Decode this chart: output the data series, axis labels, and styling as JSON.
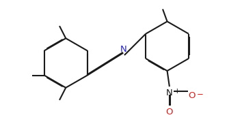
{
  "bg_color": "#ffffff",
  "bond_color": "#1a1a1a",
  "N_color": "#2222cc",
  "O_color": "#cc2222",
  "lw": 1.5,
  "dbo": 0.025,
  "fs": 9.5,
  "figsize": [
    3.54,
    1.85
  ],
  "dpi": 100,
  "xlim": [
    0.0,
    10.5
  ],
  "ylim": [
    0.0,
    5.5
  ]
}
